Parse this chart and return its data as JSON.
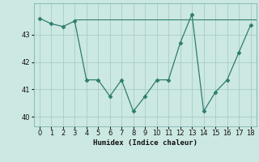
{
  "x": [
    0,
    1,
    2,
    3,
    4,
    5,
    6,
    7,
    8,
    9,
    10,
    11,
    12,
    13,
    14,
    15,
    16,
    17,
    18
  ],
  "y": [
    43.6,
    43.4,
    43.3,
    43.5,
    41.35,
    41.35,
    40.75,
    41.35,
    40.2,
    40.75,
    41.35,
    41.35,
    42.7,
    43.75,
    40.2,
    40.9,
    41.35,
    42.35,
    43.35
  ],
  "line_color": "#2e7d6e",
  "marker": "D",
  "marker_size": 2.5,
  "bg_color": "#cce8e2",
  "grid_color": "#aaccc6",
  "xlabel": "Humidex (Indice chaleur)",
  "ylim": [
    39.65,
    44.15
  ],
  "xlim": [
    -0.5,
    18.5
  ],
  "yticks": [
    40,
    41,
    42,
    43
  ],
  "xticks": [
    0,
    1,
    2,
    3,
    4,
    5,
    6,
    7,
    8,
    9,
    10,
    11,
    12,
    13,
    14,
    15,
    16,
    17,
    18
  ],
  "hline_y": 43.55,
  "hline_x_start": 3.0,
  "hline_x_end": 18.5
}
